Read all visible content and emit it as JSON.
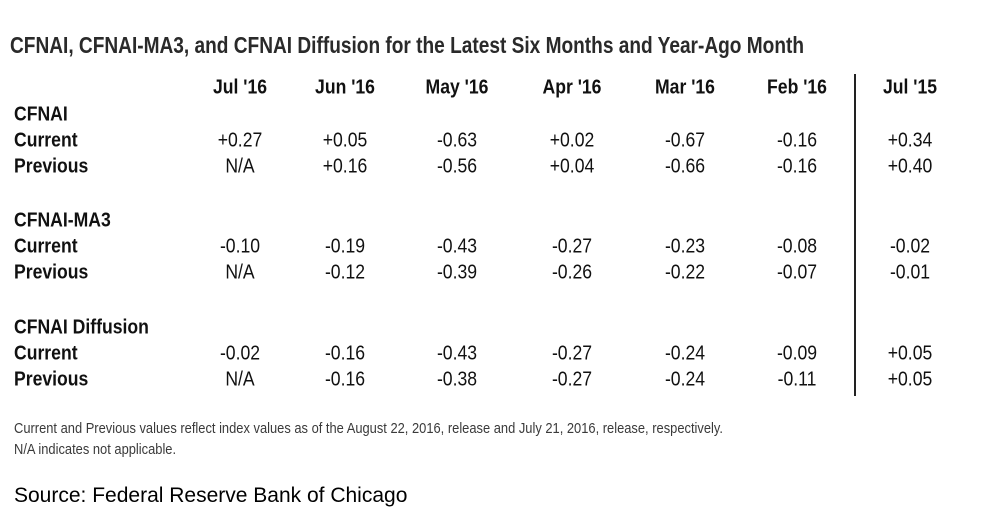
{
  "title": "CFNAI, CFNAI-MA3, and CFNAI Diffusion for the Latest Six Months and Year-Ago Month",
  "columns": [
    "Jul '16",
    "Jun '16",
    "May '16",
    "Apr '16",
    "Mar '16",
    "Feb '16",
    "Jul '15"
  ],
  "sections": [
    {
      "name": "CFNAI",
      "rows": [
        {
          "label": "Current",
          "values": [
            "+0.27",
            "+0.05",
            "-0.63",
            "+0.02",
            "-0.67",
            "-0.16",
            "+0.34"
          ]
        },
        {
          "label": "Previous",
          "values": [
            "N/A",
            "+0.16",
            "-0.56",
            "+0.04",
            "-0.66",
            "-0.16",
            "+0.40"
          ]
        }
      ]
    },
    {
      "name": "CFNAI-MA3",
      "rows": [
        {
          "label": "Current",
          "values": [
            "-0.10",
            "-0.19",
            "-0.43",
            "-0.27",
            "-0.23",
            "-0.08",
            "-0.02"
          ]
        },
        {
          "label": "Previous",
          "values": [
            "N/A",
            "-0.12",
            "-0.39",
            "-0.26",
            "-0.22",
            "-0.07",
            "-0.01"
          ]
        }
      ]
    },
    {
      "name": "CFNAI Diffusion",
      "rows": [
        {
          "label": "Current",
          "values": [
            "-0.02",
            "-0.16",
            "-0.43",
            "-0.27",
            "-0.24",
            "-0.09",
            "+0.05"
          ]
        },
        {
          "label": "Previous",
          "values": [
            "N/A",
            "-0.16",
            "-0.38",
            "-0.27",
            "-0.24",
            "-0.11",
            "+0.05"
          ]
        }
      ]
    }
  ],
  "footnote": {
    "line1": "Current and Previous values reflect index values as of the August 22, 2016, release and July 21, 2016, release, respectively.",
    "line2": "N/A indicates not applicable."
  },
  "source": "Source: Federal Reserve Bank of Chicago"
}
